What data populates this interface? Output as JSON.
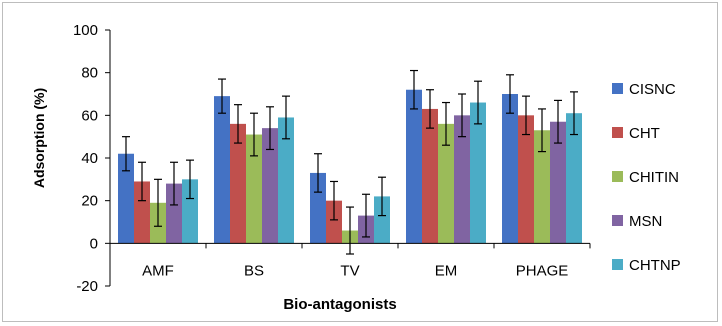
{
  "chart_data": {
    "type": "bar",
    "title": "",
    "xlabel": "Bio-antagonists",
    "ylabel": "Adsorption (%)",
    "ylim": [
      -20,
      100
    ],
    "yticks": [
      -20,
      0,
      20,
      40,
      60,
      80,
      100
    ],
    "categories": [
      "AMF",
      "BS",
      "TV",
      "EM",
      "PHAGE"
    ],
    "legend_position": "right",
    "series": [
      {
        "name": "CISNC",
        "color": "#4472C4",
        "values": [
          42,
          69,
          33,
          72,
          70
        ],
        "errors": [
          8,
          8,
          9,
          9,
          9
        ]
      },
      {
        "name": "CHT",
        "color": "#C0504D",
        "values": [
          29,
          56,
          20,
          63,
          60
        ],
        "errors": [
          9,
          9,
          9,
          9,
          9
        ]
      },
      {
        "name": "CHITIN",
        "color": "#9BBB59",
        "values": [
          19,
          51,
          6,
          56,
          53
        ],
        "errors": [
          11,
          10,
          11,
          10,
          10
        ]
      },
      {
        "name": "MSN",
        "color": "#8064A2",
        "values": [
          28,
          54,
          13,
          60,
          57
        ],
        "errors": [
          10,
          10,
          10,
          10,
          10
        ]
      },
      {
        "name": "CHTNP",
        "color": "#4BACC6",
        "values": [
          30,
          59,
          22,
          66,
          61
        ],
        "errors": [
          9,
          10,
          9,
          10,
          10
        ]
      }
    ]
  }
}
